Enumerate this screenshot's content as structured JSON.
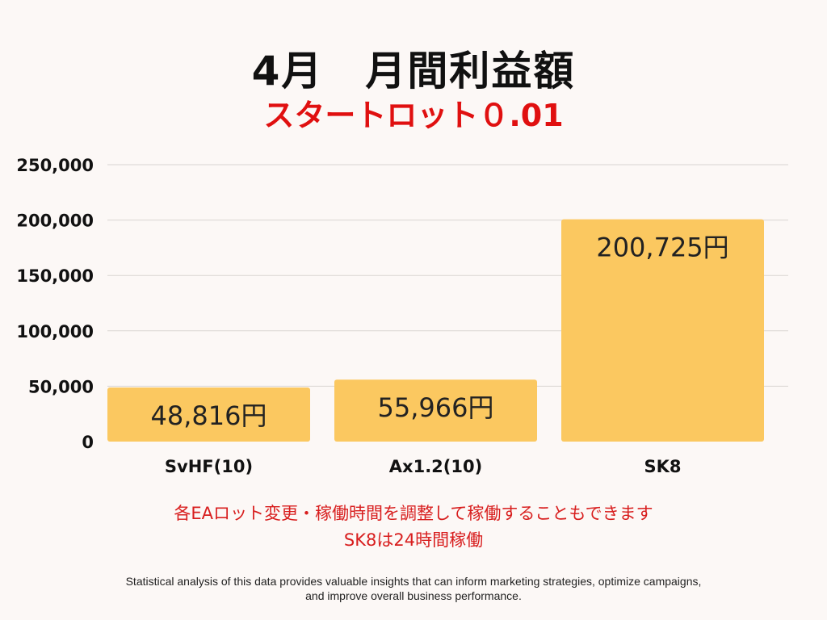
{
  "header": {
    "title": "4月　月間利益額",
    "subtitle": "スタートロット０.01"
  },
  "chart_data": {
    "type": "bar",
    "categories": [
      "SvHF(10)",
      "Ax1.2(10)",
      "SK8"
    ],
    "values": [
      48816,
      55966,
      200725
    ],
    "data_labels": [
      "48,816円",
      "55,966円",
      "200,725円"
    ],
    "yticks": [
      "0",
      "50,000",
      "100,000",
      "150,000",
      "200,000",
      "250,000"
    ],
    "ylim": [
      0,
      250000
    ],
    "grid": true,
    "bar_color": "#fbc860",
    "grid_color": "#d9d5d2"
  },
  "notes": {
    "line1": "各EAロット変更・稼働時間を調整して稼働することもできます",
    "line2": "SK8は24時間稼働"
  },
  "footer": {
    "line1": "Statistical analysis of this data provides valuable insights that can inform marketing strategies, optimize campaigns,",
    "line2": "and improve overall business performance."
  }
}
